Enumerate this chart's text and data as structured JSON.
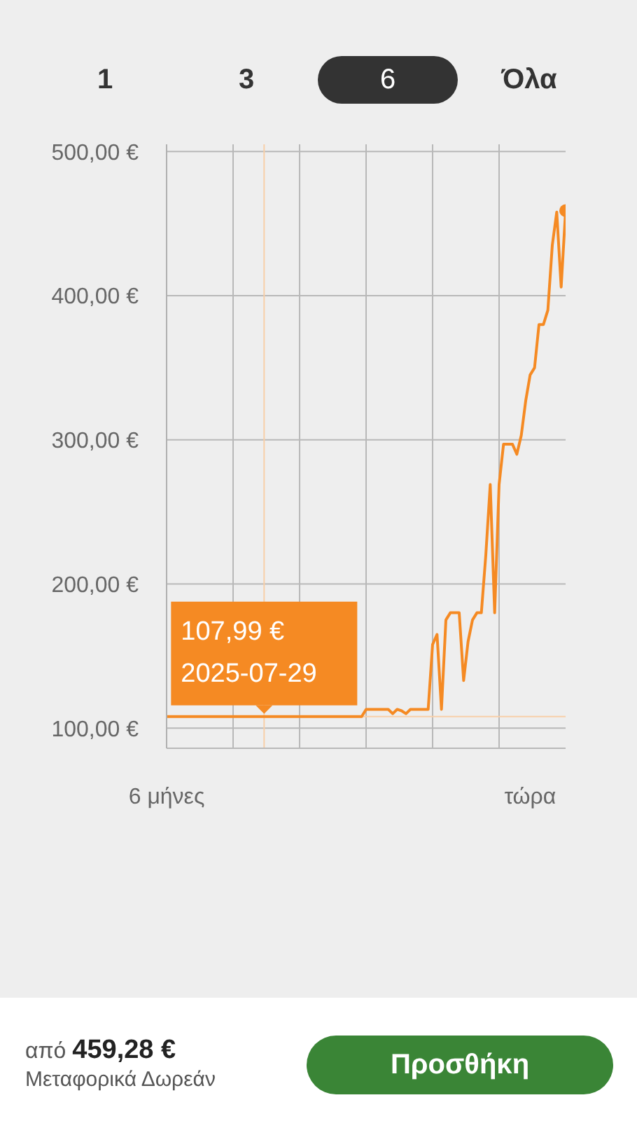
{
  "chart_data": {
    "type": "line",
    "categories": [
      "6 μήνες",
      null,
      null,
      null,
      null,
      null,
      null,
      null,
      null,
      null,
      null,
      null,
      null,
      null,
      null,
      null,
      null,
      null,
      null,
      null,
      null,
      null,
      null,
      null,
      null,
      null,
      null,
      null,
      null,
      null,
      null,
      null,
      null,
      null,
      null,
      null,
      null,
      null,
      null,
      null,
      null,
      null,
      null,
      null,
      null,
      null,
      null,
      null,
      null,
      null,
      null,
      null,
      null,
      null,
      null,
      null,
      null,
      null,
      null,
      null,
      null,
      null,
      null,
      null,
      null,
      null,
      null,
      null,
      null,
      null,
      null,
      null,
      null,
      null,
      null,
      null,
      null,
      null,
      null,
      null,
      null,
      null,
      "τώρα",
      null,
      null,
      null,
      null,
      null,
      null,
      null,
      null
    ],
    "ylim": [
      86,
      505
    ],
    "yticks": [
      {
        "value": 100,
        "label": "100,00 €"
      },
      {
        "value": 200,
        "label": "200,00 €"
      },
      {
        "value": 300,
        "label": "300,00 €"
      },
      {
        "value": 400,
        "label": "400,00 €"
      },
      {
        "value": 500,
        "label": "500,00 €"
      }
    ],
    "grid": true,
    "marker": "none",
    "line_style": "solid",
    "series": [
      {
        "type": "line",
        "color": "#f58a23",
        "values": [
          108,
          108,
          108,
          108,
          108,
          108,
          108,
          108,
          108,
          108,
          108,
          108,
          108,
          108,
          108,
          108,
          108,
          108,
          108,
          108,
          108,
          108,
          108,
          108,
          108,
          108,
          108,
          108,
          108,
          108,
          108,
          108,
          108,
          108,
          108,
          108,
          108,
          108,
          108,
          108,
          108,
          108,
          108,
          108,
          108,
          113,
          113,
          113,
          113,
          113,
          113,
          110,
          113,
          112,
          110,
          113,
          113,
          113,
          113,
          113,
          158,
          165,
          113,
          175,
          180,
          180,
          180,
          133,
          160,
          175,
          180,
          180,
          220,
          269,
          180,
          269,
          297,
          297,
          297,
          290,
          303,
          327,
          345,
          350,
          380,
          380,
          390,
          435,
          458,
          406,
          459
        ]
      },
      {
        "type": "scatter",
        "color": "#f58a23",
        "marker": "circle",
        "values": [
          null,
          null,
          null,
          null,
          null,
          null,
          null,
          null,
          null,
          null,
          null,
          null,
          null,
          null,
          null,
          null,
          null,
          null,
          null,
          null,
          null,
          null,
          null,
          null,
          null,
          null,
          null,
          null,
          null,
          null,
          null,
          null,
          null,
          null,
          null,
          null,
          null,
          null,
          null,
          null,
          null,
          null,
          null,
          null,
          null,
          null,
          null,
          null,
          null,
          null,
          null,
          null,
          null,
          null,
          null,
          null,
          null,
          null,
          null,
          null,
          null,
          null,
          null,
          null,
          null,
          null,
          null,
          null,
          null,
          null,
          null,
          null,
          null,
          null,
          null,
          null,
          null,
          null,
          null,
          null,
          null,
          null,
          null,
          null,
          null,
          null,
          null,
          null,
          null,
          null,
          459
        ]
      }
    ],
    "ref_lines": [
      {
        "axis": "y",
        "value": 108,
        "color": "#f8cfa8"
      }
    ],
    "annotations": [
      {
        "text": "107,99 €\n2025-07-29",
        "y": 108
      },
      "1",
      "3",
      "6",
      "Όλα",
      "από 459,28 €",
      "Μεταφορικά Δωρεάν",
      "Προσθήκη"
    ]
  }
}
